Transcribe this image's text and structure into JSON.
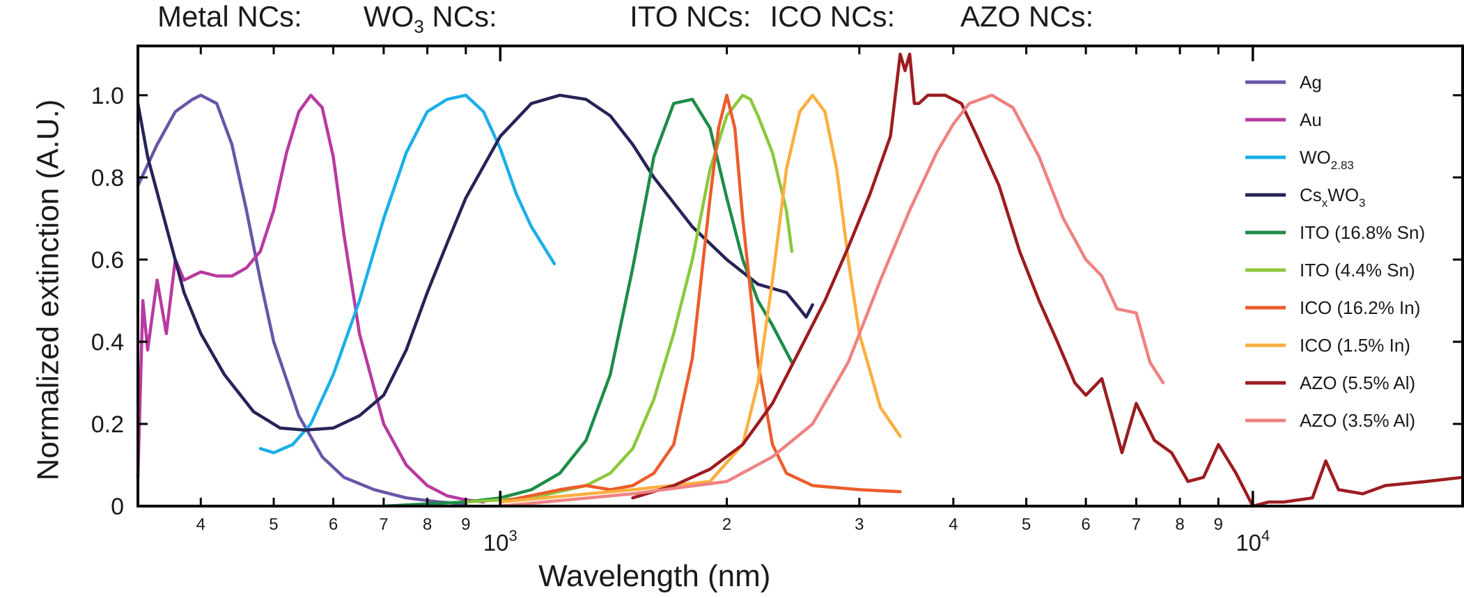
{
  "chart_data": {
    "type": "line",
    "xlabel": "Wavelength (nm)",
    "ylabel": "Normalized extinction (A.U.)",
    "x_scale": "log",
    "xlim": [
      330,
      19000
    ],
    "ylim": [
      0,
      1.12
    ],
    "yticks": [
      "0",
      "0.2",
      "0.4",
      "0.6",
      "0.8",
      "1.0"
    ],
    "xticks_minor": [
      {
        "v": 400,
        "label": "4"
      },
      {
        "v": 500,
        "label": "5"
      },
      {
        "v": 600,
        "label": "6"
      },
      {
        "v": 700,
        "label": "7"
      },
      {
        "v": 800,
        "label": "8"
      },
      {
        "v": 900,
        "label": "9"
      },
      {
        "v": 2000,
        "label": "2"
      },
      {
        "v": 3000,
        "label": "3"
      },
      {
        "v": 4000,
        "label": "4"
      },
      {
        "v": 5000,
        "label": "5"
      },
      {
        "v": 6000,
        "label": "6"
      },
      {
        "v": 7000,
        "label": "7"
      },
      {
        "v": 8000,
        "label": "8"
      },
      {
        "v": 9000,
        "label": "9"
      }
    ],
    "xticks_major": [
      {
        "v": 1000,
        "base": "10",
        "exp": "3"
      },
      {
        "v": 10000,
        "base": "10",
        "exp": "4"
      }
    ],
    "group_labels": [
      {
        "text": "Metal NCs:",
        "x_at": 330
      },
      {
        "text": "WO",
        "sub": "3",
        "after": " NCs:",
        "x_at": 620
      },
      {
        "text": "ITO NCs:",
        "x_at": 1400
      },
      {
        "text": "ICO NCs:",
        "x_at": 2150
      },
      {
        "text": "AZO NCs:",
        "x_at": 3850
      }
    ],
    "legend_position": "right, inside plot",
    "series": [
      {
        "name": "Ag",
        "color": "#6a55a8",
        "x": [
          330,
          350,
          370,
          390,
          400,
          420,
          440,
          460,
          480,
          500,
          540,
          580,
          620,
          680,
          750,
          830,
          900
        ],
        "y": [
          0.78,
          0.88,
          0.96,
          0.99,
          1.0,
          0.98,
          0.88,
          0.72,
          0.55,
          0.4,
          0.22,
          0.12,
          0.07,
          0.04,
          0.02,
          0.01,
          0.005
        ]
      },
      {
        "name": "Au",
        "color": "#b83aa0",
        "x": [
          330,
          335,
          340,
          350,
          360,
          370,
          380,
          400,
          420,
          440,
          460,
          480,
          500,
          520,
          540,
          560,
          580,
          600,
          620,
          650,
          700,
          750,
          800,
          850,
          900,
          950
        ],
        "y": [
          0.07,
          0.5,
          0.38,
          0.55,
          0.42,
          0.6,
          0.55,
          0.57,
          0.56,
          0.56,
          0.58,
          0.62,
          0.72,
          0.86,
          0.96,
          1.0,
          0.97,
          0.85,
          0.66,
          0.42,
          0.2,
          0.1,
          0.05,
          0.025,
          0.015,
          0.01
        ]
      },
      {
        "name": "WO_{2.83}",
        "name_parts": [
          "WO",
          "2.83"
        ],
        "color": "#1ab0e6",
        "x": [
          480,
          500,
          530,
          560,
          600,
          650,
          700,
          750,
          800,
          850,
          900,
          950,
          1000,
          1050,
          1100,
          1180
        ],
        "y": [
          0.14,
          0.13,
          0.15,
          0.2,
          0.32,
          0.5,
          0.7,
          0.86,
          0.96,
          0.99,
          1.0,
          0.96,
          0.87,
          0.76,
          0.68,
          0.59
        ]
      },
      {
        "name": "Cs_{x}WO_{3}",
        "name_parts": [
          "Cs",
          "x",
          "WO",
          "3"
        ],
        "color": "#262357",
        "x": [
          330,
          340,
          360,
          380,
          400,
          430,
          470,
          510,
          550,
          600,
          650,
          700,
          750,
          800,
          850,
          900,
          1000,
          1100,
          1200,
          1300,
          1400,
          1500,
          1600,
          1800,
          2000,
          2200,
          2400,
          2500,
          2550,
          2600
        ],
        "y": [
          0.98,
          0.85,
          0.68,
          0.52,
          0.42,
          0.32,
          0.23,
          0.19,
          0.185,
          0.19,
          0.22,
          0.27,
          0.38,
          0.52,
          0.64,
          0.75,
          0.9,
          0.98,
          1.0,
          0.99,
          0.95,
          0.88,
          0.8,
          0.68,
          0.6,
          0.54,
          0.52,
          0.48,
          0.46,
          0.49
        ]
      },
      {
        "name": "ITO (16.8% Sn)",
        "color": "#1e8c48",
        "x": [
          700,
          900,
          1000,
          1100,
          1200,
          1300,
          1400,
          1500,
          1600,
          1700,
          1800,
          1900,
          2000,
          2100,
          2200,
          2300,
          2440
        ],
        "y": [
          0.0,
          0.01,
          0.02,
          0.04,
          0.08,
          0.16,
          0.32,
          0.58,
          0.85,
          0.98,
          0.99,
          0.92,
          0.75,
          0.6,
          0.5,
          0.44,
          0.35
        ]
      },
      {
        "name": "ITO (4.4% Sn)",
        "color": "#8cc83c",
        "x": [
          900,
          1100,
          1300,
          1400,
          1500,
          1600,
          1700,
          1800,
          1900,
          2000,
          2100,
          2150,
          2200,
          2300,
          2400,
          2440
        ],
        "y": [
          0.01,
          0.02,
          0.05,
          0.08,
          0.14,
          0.26,
          0.42,
          0.6,
          0.82,
          0.95,
          1.0,
          0.99,
          0.95,
          0.86,
          0.72,
          0.62
        ]
      },
      {
        "name": "ICO (16.2% In)",
        "color": "#ec5c2c",
        "x": [
          1000,
          1200,
          1300,
          1400,
          1500,
          1600,
          1700,
          1800,
          1900,
          1950,
          2000,
          2050,
          2100,
          2200,
          2300,
          2400,
          2600,
          3000,
          3400
        ],
        "y": [
          0.01,
          0.04,
          0.05,
          0.04,
          0.05,
          0.08,
          0.15,
          0.36,
          0.75,
          0.92,
          1.0,
          0.92,
          0.7,
          0.35,
          0.15,
          0.08,
          0.05,
          0.04,
          0.035
        ]
      },
      {
        "name": "ICO (1.5% In)",
        "color": "#fbaf40",
        "x": [
          1000,
          1500,
          1900,
          2100,
          2200,
          2300,
          2400,
          2500,
          2600,
          2700,
          2800,
          2900,
          3000,
          3200,
          3400
        ],
        "y": [
          0.01,
          0.04,
          0.06,
          0.15,
          0.3,
          0.55,
          0.82,
          0.96,
          1.0,
          0.96,
          0.82,
          0.6,
          0.42,
          0.24,
          0.17
        ]
      },
      {
        "name": "AZO (5.5% Al)",
        "color": "#9c1c20",
        "x": [
          1500,
          1700,
          1900,
          2100,
          2300,
          2500,
          2700,
          2900,
          3100,
          3300,
          3400,
          3450,
          3500,
          3550,
          3600,
          3700,
          3900,
          4100,
          4300,
          4600,
          4900,
          5200,
          5500,
          5800,
          6000,
          6300,
          6500,
          6700,
          7000,
          7400,
          7800,
          8200,
          8600,
          9000,
          9500,
          10000,
          10500,
          11000,
          12000,
          12500,
          13000,
          14000,
          15000,
          17000,
          19000
        ],
        "y": [
          0.02,
          0.05,
          0.09,
          0.15,
          0.25,
          0.38,
          0.5,
          0.63,
          0.76,
          0.9,
          1.1,
          1.06,
          1.1,
          0.98,
          0.98,
          1.0,
          1.0,
          0.98,
          0.9,
          0.78,
          0.62,
          0.5,
          0.4,
          0.3,
          0.27,
          0.31,
          0.22,
          0.13,
          0.25,
          0.16,
          0.13,
          0.06,
          0.07,
          0.15,
          0.08,
          0.0,
          0.01,
          0.01,
          0.02,
          0.11,
          0.04,
          0.03,
          0.05,
          0.06,
          0.07
        ]
      },
      {
        "name": "AZO (3.5% Al)",
        "color": "#ef8282",
        "x": [
          1000,
          1500,
          2000,
          2300,
          2600,
          2900,
          3200,
          3500,
          3800,
          4000,
          4200,
          4500,
          4800,
          5200,
          5600,
          6000,
          6300,
          6600,
          7000,
          7300,
          7600
        ],
        "y": [
          0.0,
          0.03,
          0.06,
          0.12,
          0.2,
          0.35,
          0.55,
          0.72,
          0.86,
          0.93,
          0.98,
          1.0,
          0.97,
          0.85,
          0.7,
          0.6,
          0.56,
          0.48,
          0.47,
          0.35,
          0.3
        ]
      }
    ]
  }
}
